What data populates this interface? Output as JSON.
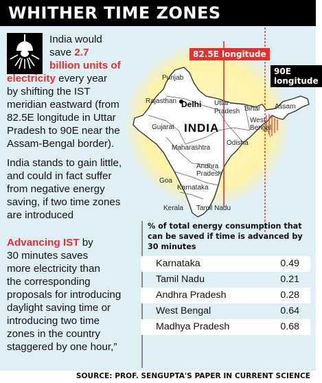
{
  "header": {
    "title": "WHITHER TIME ZONES"
  },
  "intro": {
    "t1": "India would",
    "t2": "save ",
    "t3": "2.7",
    "t4": "billion units of",
    "t5": "electricity",
    "t6": " every year",
    "t7": "by shifting the IST",
    "t8": "meridian eastward (from",
    "t9": "82.5E longitude in Uttar",
    "t10": "Pradesh to 90E near the",
    "t11": "Assam-Bengal border)."
  },
  "para2": {
    "l1": "India stands to gain little,",
    "l2": "and could in fact suffer",
    "l3": "from negative energy",
    "l4": "saving, if two time zones",
    "l5": "are introduced"
  },
  "para3": {
    "l1a": "Advancing IST",
    "l1b": " by",
    "l2": "30 minutes saves",
    "l3": "more electricity than",
    "l4": "the corresponding",
    "l5": "proposals for introducing",
    "l6": "daylight saving time or",
    "l7": "introducing two time",
    "l8": "zones in the country",
    "l9": "staggered by one hour,”"
  },
  "map": {
    "label_825": "82.5E longitude",
    "label_90": "90E longitude",
    "country": "INDIA",
    "delhi": "Delhi",
    "states": {
      "punjab": "Punjab",
      "rajasthan": "Rajasthan",
      "gujarat": "Gujarat",
      "maharashtra": "Maharashtra",
      "goa": "Goa",
      "karnataka": "Karnataka",
      "kerala": "Kerala",
      "tamilnadu": "Tamil Nadu",
      "andhra": "Andhra",
      "pradesh_a": "Pradesh",
      "odisha": "Odisha",
      "uttar": "Uttar",
      "pradesh_u": "Pradesh",
      "bihar": "Bihar",
      "west": "West",
      "bengal": "Bengal",
      "assam": "Assam"
    }
  },
  "table": {
    "heading": "% of total energy consumption that can be saved if time is advanced by 30 minutes",
    "rows": [
      {
        "state": "Karnataka",
        "value": "0.49"
      },
      {
        "state": "Tamil Nadu",
        "value": "0.21"
      },
      {
        "state": "Andhra Pradesh",
        "value": "0.28"
      },
      {
        "state": "West Bengal",
        "value": "0.64"
      },
      {
        "state": "Madhya Pradesh",
        "value": "0.68"
      }
    ]
  },
  "source": "SOURCE: PROF. SENGUPTA'S  PAPER IN CURRENT SCIENCE",
  "colors": {
    "accent_red": "#e3312e",
    "background": "#dfeff6",
    "glow": "#fff3a8"
  }
}
